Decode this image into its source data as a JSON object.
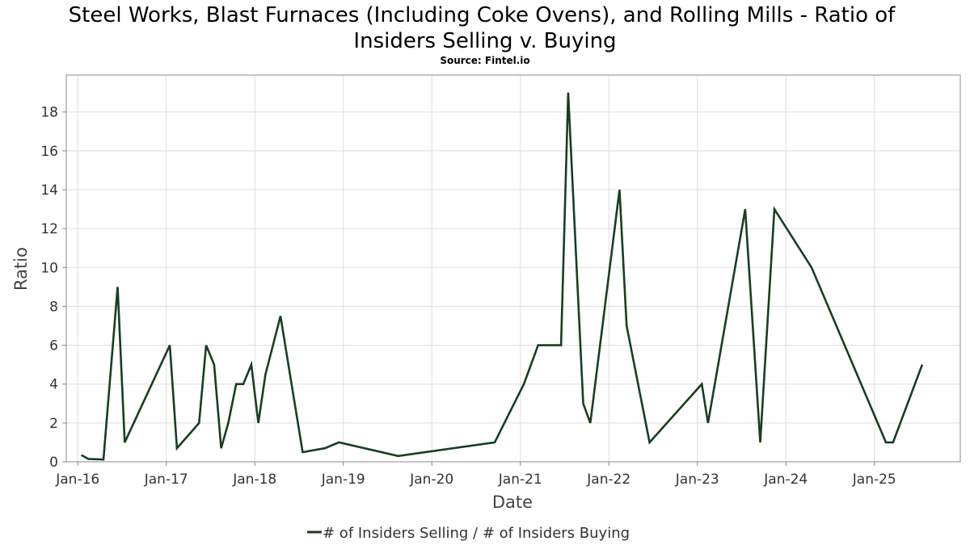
{
  "chart_data": {
    "type": "line",
    "title_line1": "Steel Works, Blast Furnaces (Including Coke Ovens), and Rolling Mills - Ratio of",
    "title_line2": "Insiders Selling v. Buying",
    "subtitle": "Source: Fintel.io",
    "xlabel": "Date",
    "ylabel": "Ratio",
    "xlim": [
      2015.87,
      2025.97
    ],
    "ylim": [
      0,
      19.9
    ],
    "grid": true,
    "legend_position": "bottom-center",
    "x_ticks": [
      {
        "label": "Jan-16",
        "x": 2016
      },
      {
        "label": "Jan-17",
        "x": 2017
      },
      {
        "label": "Jan-18",
        "x": 2018
      },
      {
        "label": "Jan-19",
        "x": 2019
      },
      {
        "label": "Jan-20",
        "x": 2020
      },
      {
        "label": "Jan-21",
        "x": 2021
      },
      {
        "label": "Jan-22",
        "x": 2022
      },
      {
        "label": "Jan-23",
        "x": 2023
      },
      {
        "label": "Jan-24",
        "x": 2024
      },
      {
        "label": "Jan-25",
        "x": 2025
      }
    ],
    "y_ticks": [
      "0",
      "2",
      "4",
      "6",
      "8",
      "10",
      "12",
      "14",
      "16",
      "18"
    ],
    "series": [
      {
        "name": "# of Insiders Selling / # of Insiders Buying",
        "color": "#173f22",
        "x": [
          2016.04,
          2016.12,
          2016.29,
          2016.45,
          2016.53,
          2017.04,
          2017.12,
          2017.37,
          2017.45,
          2017.54,
          2017.62,
          2017.7,
          2017.79,
          2017.87,
          2017.96,
          2018.04,
          2018.12,
          2018.29,
          2018.54,
          2018.79,
          2018.95,
          2019.62,
          2020.71,
          2021.04,
          2021.2,
          2021.46,
          2021.54,
          2021.71,
          2021.79,
          2022.12,
          2022.2,
          2022.46,
          2023.05,
          2023.12,
          2023.54,
          2023.71,
          2023.87,
          2024.29,
          2025.13,
          2025.21,
          2025.54
        ],
        "values": [
          0.35,
          0.15,
          0.12,
          9,
          1,
          6,
          0.7,
          2,
          6,
          5,
          0.7,
          2,
          4,
          4,
          5,
          2,
          4.5,
          7.5,
          0.5,
          0.7,
          1,
          0.3,
          1,
          4,
          6,
          6,
          19,
          3,
          2,
          14,
          7,
          1,
          4,
          2,
          13,
          1,
          13,
          10,
          1,
          1,
          5
        ]
      }
    ]
  }
}
